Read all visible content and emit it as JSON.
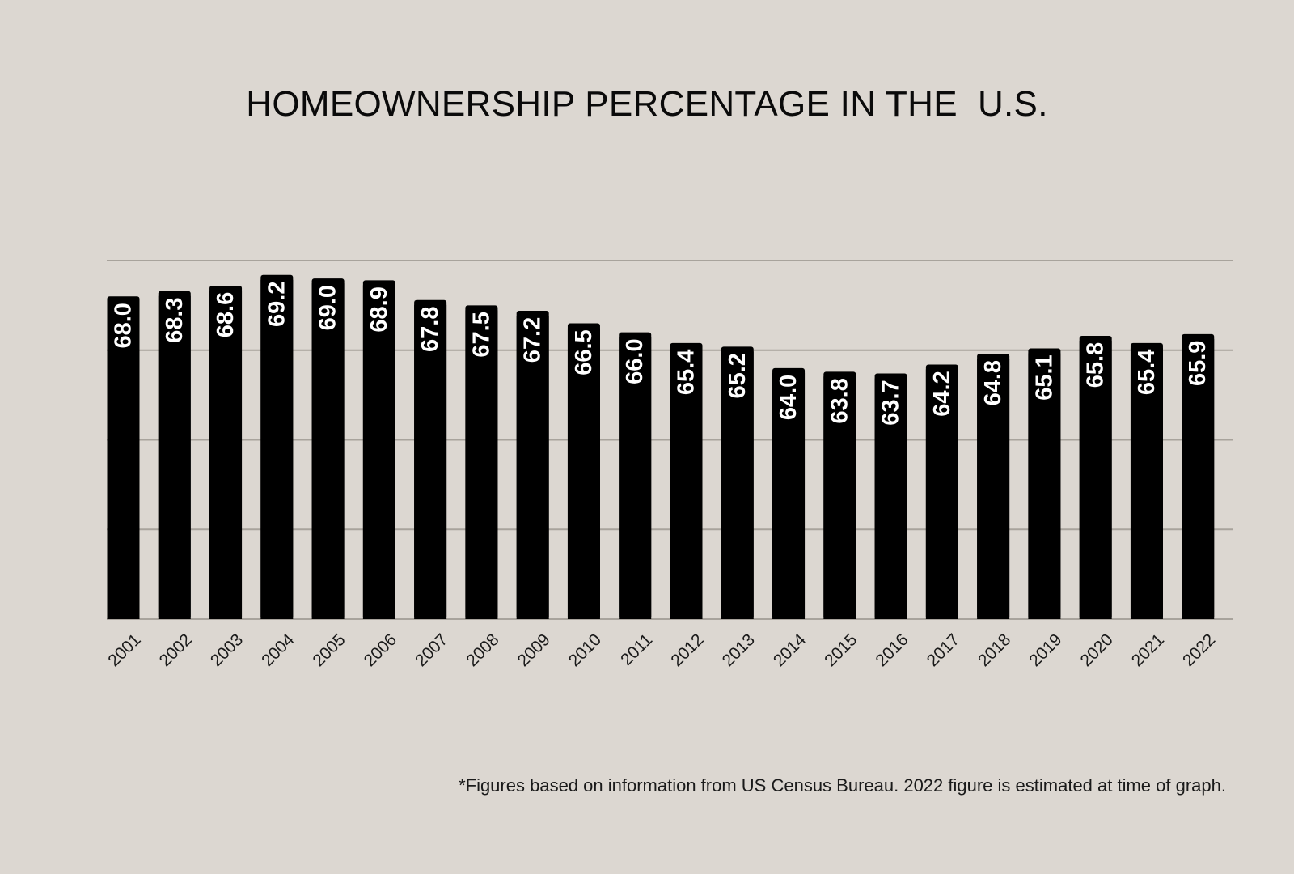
{
  "chart_data": {
    "type": "bar",
    "title": "HOMEOWNERSHIP PERCENTAGE IN THE  U.S.",
    "categories": [
      "2001",
      "2002",
      "2003",
      "2004",
      "2005",
      "2006",
      "2007",
      "2008",
      "2009",
      "2010",
      "2011",
      "2012",
      "2013",
      "2014",
      "2015",
      "2016",
      "2017",
      "2018",
      "2019",
      "2020",
      "2021",
      "2022"
    ],
    "values": [
      68.0,
      68.3,
      68.6,
      69.2,
      69.0,
      68.9,
      67.8,
      67.5,
      67.2,
      66.5,
      66.0,
      65.4,
      65.2,
      64.0,
      63.8,
      63.7,
      64.2,
      64.8,
      65.1,
      65.8,
      65.4,
      65.9
    ],
    "value_labels": [
      "68.0",
      "68.3",
      "68.6",
      "69.2",
      "69.0",
      "68.9",
      "67.8",
      "67.5",
      "67.2",
      "66.5",
      "66.0",
      "65.4",
      "65.2",
      "64.0",
      "63.8",
      "63.7",
      "64.2",
      "64.8",
      "65.1",
      "65.8",
      "65.4",
      "65.9"
    ],
    "xlabel": "",
    "ylabel": "",
    "ylim": [
      50,
      70
    ],
    "gridlines": [
      55,
      60,
      65,
      70
    ],
    "grid": true,
    "legend": "none",
    "footnote": "*Figures based on information from US Census Bureau. 2022 figure is estimated at time of graph."
  },
  "colors": {
    "background": "#dcd7d1",
    "bar": "#000000",
    "bar_label": "#ffffff",
    "grid": "#a8a39c",
    "axis_text": "#1a1a1a"
  }
}
